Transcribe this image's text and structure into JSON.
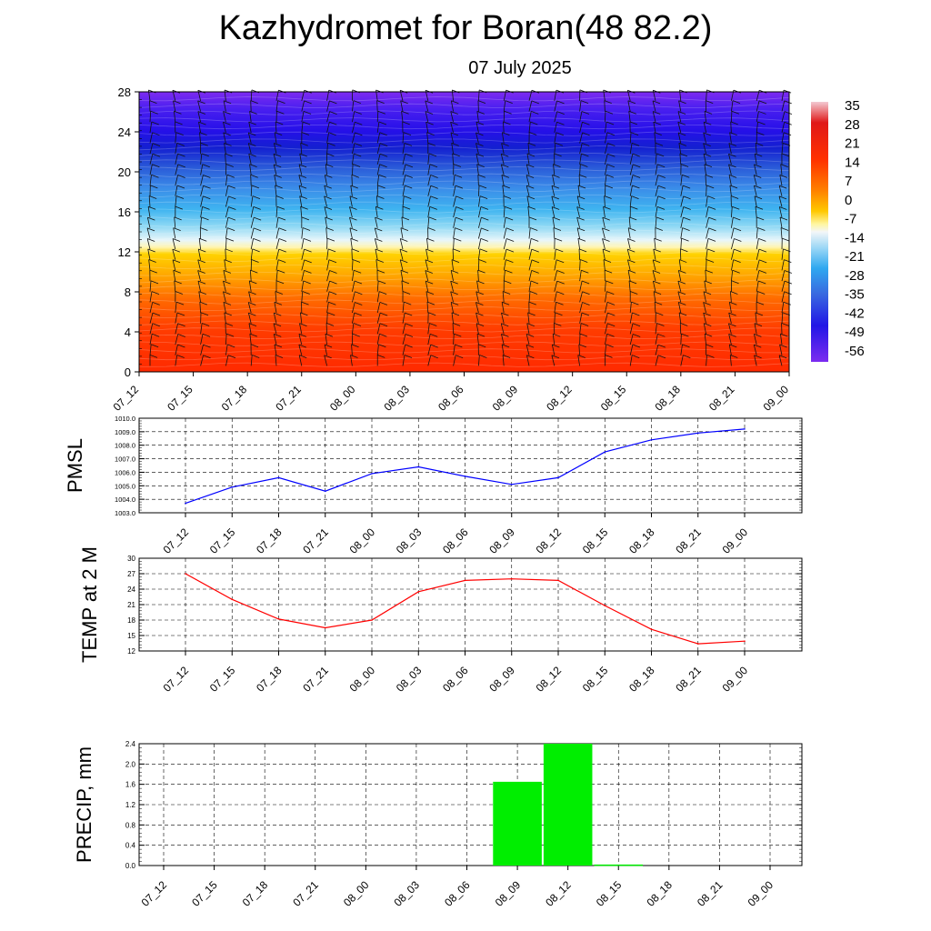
{
  "title": "Kazhydromet for Boran(48 82.2)",
  "subtitle": "07 July 2025",
  "time_labels": [
    "07_12",
    "07_15",
    "07_18",
    "07_21",
    "08_00",
    "08_03",
    "08_06",
    "08_09",
    "08_12",
    "08_15",
    "08_18",
    "08_21",
    "09_00"
  ],
  "chart_data": [
    {
      "type": "heatmap",
      "name_hint": "cross-section",
      "x": [
        "07_12",
        "07_15",
        "07_18",
        "07_21",
        "08_00",
        "08_03",
        "08_06",
        "08_09",
        "08_12",
        "08_15",
        "08_18",
        "08_21",
        "09_00"
      ],
      "y_ticks": [
        0,
        4,
        8,
        12,
        16,
        20,
        24,
        28
      ],
      "ylim": [
        0,
        28
      ],
      "colorbar_labels": [
        "35",
        "28",
        "21",
        "14",
        "7",
        "0",
        "-7",
        "-14",
        "-21",
        "-28",
        "-35",
        "-42",
        "-49",
        "-56"
      ],
      "has_wind_barbs": true
    },
    {
      "type": "line",
      "ylabel": "PMSL",
      "x": [
        "07_12",
        "07_15",
        "07_18",
        "07_21",
        "08_00",
        "08_03",
        "08_06",
        "08_09",
        "08_12",
        "08_15",
        "08_18",
        "08_21",
        "09_00"
      ],
      "values": [
        1003.7,
        1004.9,
        1005.6,
        1004.6,
        1005.9,
        1006.4,
        1005.7,
        1005.1,
        1005.6,
        1007.5,
        1008.4,
        1008.9,
        1009.2
      ],
      "ylim": [
        1003.0,
        1010.0
      ],
      "y_ticks": [
        "1003.0",
        "1004.0",
        "1005.0",
        "1006.0",
        "1007.0",
        "1008.0",
        "1009.0",
        "1010.0"
      ],
      "color": "#0000ff",
      "grid": true
    },
    {
      "type": "line",
      "ylabel": "TEMP at 2 M",
      "x": [
        "07_12",
        "07_15",
        "07_18",
        "07_21",
        "08_00",
        "08_03",
        "08_06",
        "08_09",
        "08_12",
        "08_15",
        "08_18",
        "08_21",
        "09_00"
      ],
      "values": [
        27.0,
        22.0,
        18.2,
        16.5,
        18.0,
        23.5,
        25.7,
        26.0,
        25.7,
        20.8,
        16.2,
        13.4,
        13.9
      ],
      "ylim": [
        12,
        30
      ],
      "y_ticks": [
        "12",
        "15",
        "18",
        "21",
        "24",
        "27",
        "30"
      ],
      "color": "#ff0000",
      "grid": true
    },
    {
      "type": "bar",
      "ylabel": "PRECIP, mm",
      "categories": [
        "07_12",
        "07_15",
        "07_18",
        "07_21",
        "08_00",
        "08_03",
        "08_06",
        "08_09",
        "08_12",
        "08_15",
        "08_18",
        "08_21",
        "09_00"
      ],
      "values": [
        0,
        0,
        0,
        0,
        0,
        0,
        0,
        1.65,
        2.4,
        0.02,
        0,
        0,
        0
      ],
      "ylim": [
        0,
        2.4
      ],
      "y_ticks": [
        "0.0",
        "0.4",
        "0.8",
        "1.2",
        "1.6",
        "2.0",
        "2.4"
      ],
      "color": "#00ee00",
      "grid": true
    }
  ]
}
